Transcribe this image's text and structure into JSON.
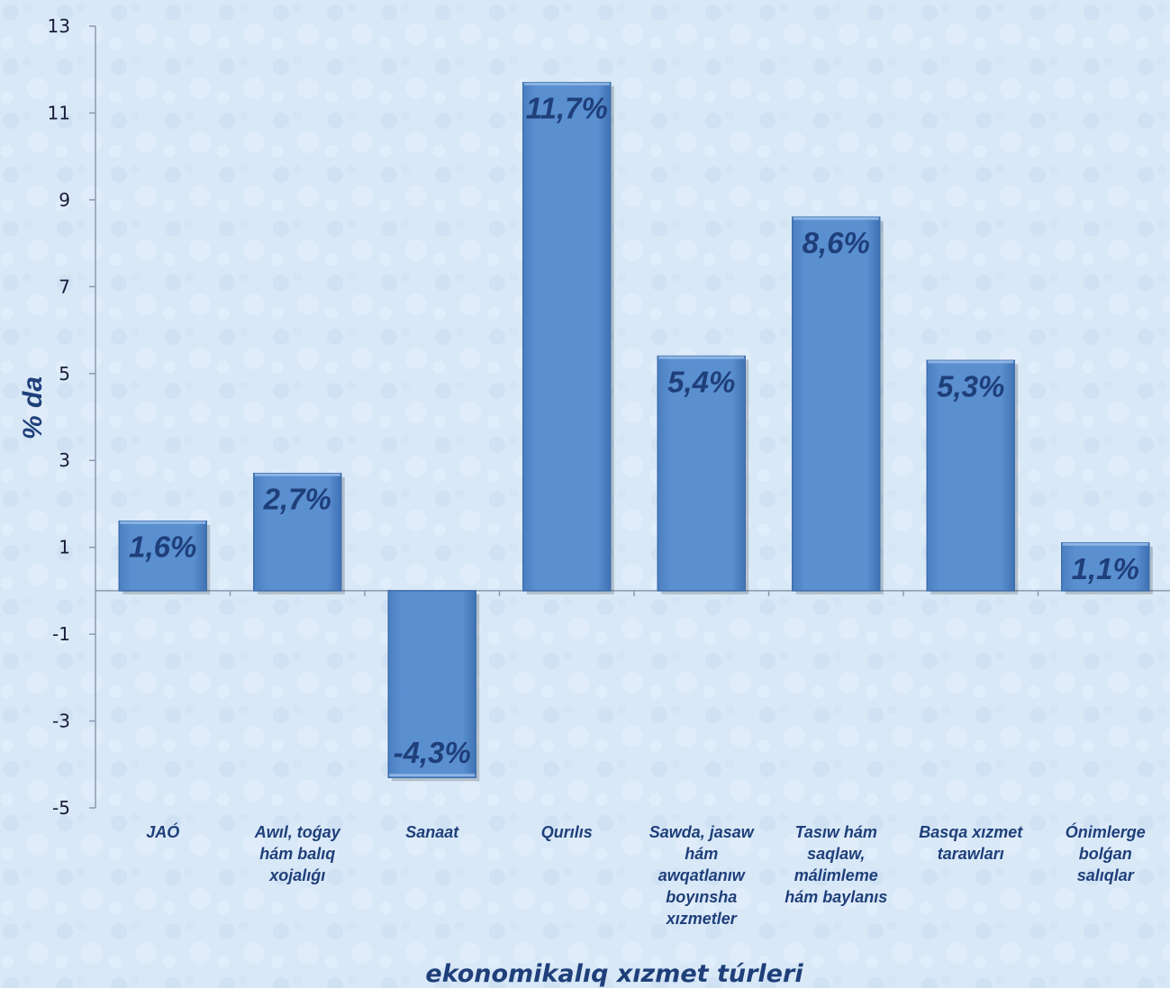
{
  "chart_data": {
    "type": "bar",
    "categories": [
      "JAÓ",
      "Awıl, toǵay hám balıq xojalıǵı",
      "Sanaat",
      "Qurılıs",
      "Sawda, jasaw hám awqatlanıw boyınsha xızmetler",
      "Tasıw hám saqlaw, málimleme hám baylanıs",
      "Basqa xızmet tarawları",
      "Ónimlerge bolǵan salıqlar"
    ],
    "category_lines": [
      [
        "JAÓ"
      ],
      [
        "Awıl, toǵay",
        "hám balıq",
        "xojalıǵı"
      ],
      [
        "Sanaat"
      ],
      [
        "Qurılıs"
      ],
      [
        "Sawda, jasaw",
        "hám",
        "awqatlanıw",
        "boyınsha",
        "xızmetler"
      ],
      [
        "Tasıw hám",
        "saqlaw,",
        "málimleme",
        "hám baylanıs"
      ],
      [
        "Basqa xızmet",
        "tarawları"
      ],
      [
        "Ónimlerge",
        "bolǵan",
        "salıqlar"
      ]
    ],
    "values": [
      1.6,
      2.7,
      -4.3,
      11.7,
      5.4,
      8.6,
      5.3,
      1.1
    ],
    "data_labels": [
      "1,6%",
      "2,7%",
      "-4,3%",
      "11,7%",
      "5,4%",
      "8,6%",
      "5,3%",
      "1,1%"
    ],
    "ylabel": "% da",
    "xlabel": "ekonomikalıq xızmet túrleri",
    "ylim": [
      -5,
      13
    ],
    "yticks": [
      13,
      11,
      9,
      7,
      5,
      3,
      1,
      -1,
      -3,
      -5
    ],
    "bar_color": "#5a8fd0",
    "bar_edge_color": "#3d6fae",
    "text_color": "#1f3f7a",
    "axis_color": "#8a9ab0",
    "background_color": "#d6e6f6",
    "grid": false
  }
}
